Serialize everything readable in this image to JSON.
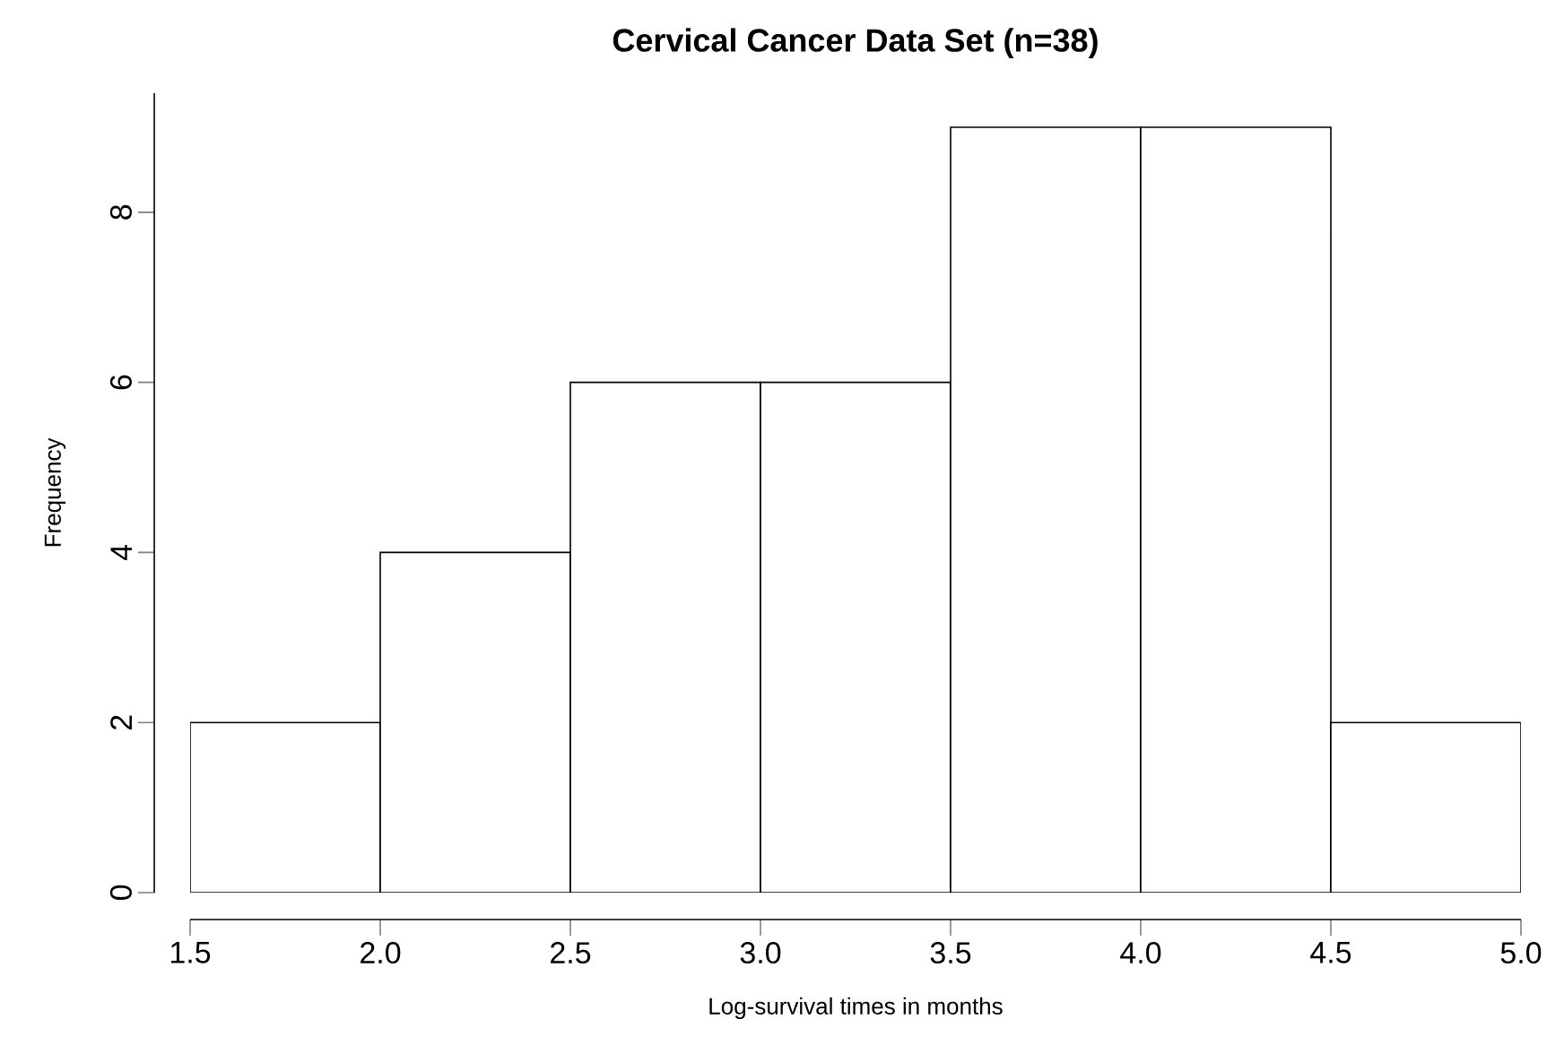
{
  "chart_data": {
    "type": "histogram",
    "title": "Cervical Cancer Data Set (n=38)",
    "xlabel": "Log-survival times in months",
    "ylabel": "Frequency",
    "bins": [
      1.5,
      2.0,
      2.5,
      3.0,
      3.5,
      4.0,
      4.5,
      5.0
    ],
    "values": [
      2,
      4,
      6,
      6,
      9,
      9,
      2
    ],
    "color": "#ffffff",
    "xlim": [
      1.5,
      5.0
    ],
    "ylim": [
      0,
      9.4
    ],
    "xticks": [
      1.5,
      {
        "value": 2.0,
        "label": "2.0"
      },
      2.5,
      {
        "value": 3.0,
        "label": "3.0"
      },
      3.5,
      {
        "value": 4.0,
        "label": "4.0"
      },
      4.5,
      {
        "value": 5.0,
        "label": "5.0"
      }
    ],
    "yticks": [
      0,
      2,
      4,
      6,
      8
    ]
  }
}
